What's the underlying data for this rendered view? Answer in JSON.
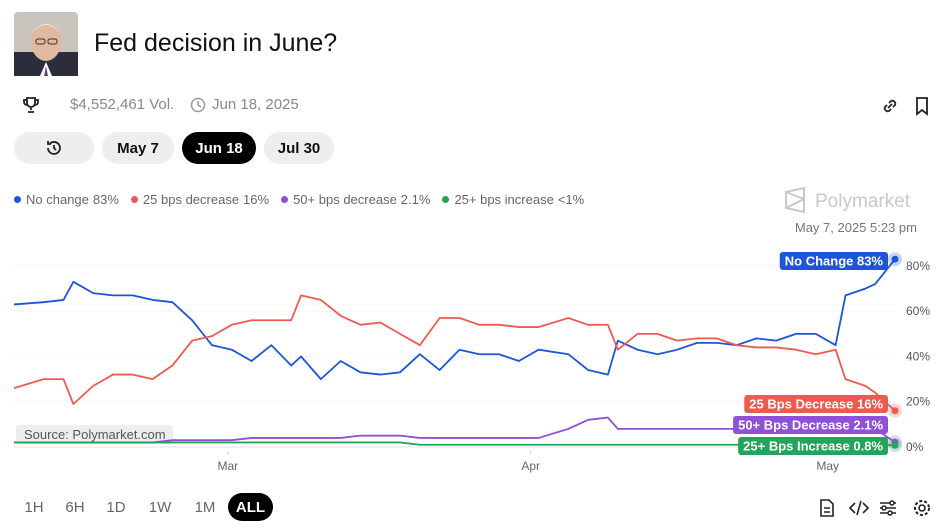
{
  "header": {
    "title": "Fed decision in June?",
    "volume": "$4,552,461 Vol.",
    "end_date": "Jun 18, 2025"
  },
  "date_tabs": [
    "May 7",
    "Jun 18",
    "Jul 30"
  ],
  "selected_date_tab": 1,
  "time_ranges": [
    "1H",
    "6H",
    "1D",
    "1W",
    "1M",
    "ALL"
  ],
  "selected_time_range": 5,
  "brand": "Polymarket",
  "source": "Source: Polymarket.com",
  "hover_time": "May 7, 2025 5:23 pm",
  "chart_data": {
    "type": "line",
    "x": [
      0,
      3,
      5,
      6,
      8,
      10,
      12,
      14,
      16,
      18,
      20,
      22,
      24,
      26,
      28,
      29,
      31,
      33,
      35,
      37,
      39,
      41,
      43,
      45,
      47,
      49,
      51,
      53,
      56,
      58,
      60,
      61,
      63,
      65,
      67,
      69,
      71,
      73,
      75,
      77,
      79,
      81,
      83,
      84,
      86,
      87,
      89
    ],
    "xlim": [
      0,
      89
    ],
    "xticks": [
      {
        "value": 21.6,
        "label": "Mar"
      },
      {
        "value": 52.2,
        "label": "Apr"
      },
      {
        "value": 82.2,
        "label": "May"
      }
    ],
    "ylim": [
      -2,
      99
    ],
    "yticks": [
      {
        "value": 0,
        "label": "0%"
      },
      {
        "value": 20,
        "label": "20%"
      },
      {
        "value": 40,
        "label": "40%"
      },
      {
        "value": 60,
        "label": "60%"
      },
      {
        "value": 80,
        "label": "80%"
      }
    ],
    "grid": true,
    "series": [
      {
        "name": "No change",
        "legend_value": "83%",
        "end_label": "No Change 83%",
        "color": "#1d55d8",
        "values": [
          63,
          64,
          65,
          73,
          68,
          67,
          67,
          65,
          64,
          56,
          45,
          43,
          38,
          45,
          36,
          40,
          30,
          38,
          33,
          32,
          33,
          41,
          34,
          43,
          41,
          41,
          38,
          43,
          41,
          34,
          32,
          47,
          43,
          41,
          43,
          46,
          46,
          45,
          48,
          47,
          50,
          50,
          45,
          67,
          70,
          72,
          83
        ]
      },
      {
        "name": "25 bps decrease",
        "legend_value": "16%",
        "end_label": "25 Bps Decrease 16%",
        "color": "#ef5a50",
        "values": [
          26,
          30,
          30,
          19,
          27,
          32,
          32,
          30,
          36,
          47,
          49,
          54,
          56,
          56,
          56,
          67,
          65,
          58,
          54,
          55,
          50,
          45,
          57,
          57,
          54,
          54,
          53,
          53,
          57,
          54,
          54,
          43,
          50,
          50,
          47,
          48,
          48,
          45,
          44,
          44,
          43,
          41,
          43,
          30,
          27,
          24,
          16
        ]
      },
      {
        "name": "50+ bps decrease",
        "legend_value": "2.1%",
        "end_label": "50+ Bps Decrease 2.1%",
        "color": "#9050d8",
        "values": [
          2,
          2,
          2,
          2,
          2,
          2,
          2,
          2,
          3,
          3,
          3,
          3,
          4,
          4,
          4,
          4,
          4,
          4,
          5,
          5,
          5,
          4,
          4,
          4,
          4,
          4,
          4,
          4,
          8,
          12,
          13,
          8,
          8,
          8,
          8,
          8,
          8,
          8,
          8,
          8,
          7,
          8,
          8,
          8,
          8,
          8,
          2.1
        ]
      },
      {
        "name": "25+ bps increase",
        "legend_value": "<1%",
        "end_label": "25+ Bps Increase 0.8%",
        "color": "#24a35a",
        "values": [
          2,
          2,
          2,
          2,
          2,
          2,
          2,
          2,
          2,
          2,
          2,
          2,
          2,
          2,
          2,
          2,
          2,
          2,
          2,
          2,
          2,
          1,
          1,
          1,
          1,
          1,
          1,
          1,
          1,
          1,
          1,
          1,
          1,
          1,
          1,
          1,
          1,
          1,
          1,
          1,
          1,
          1,
          1,
          1,
          1,
          1,
          0.8
        ]
      }
    ]
  }
}
